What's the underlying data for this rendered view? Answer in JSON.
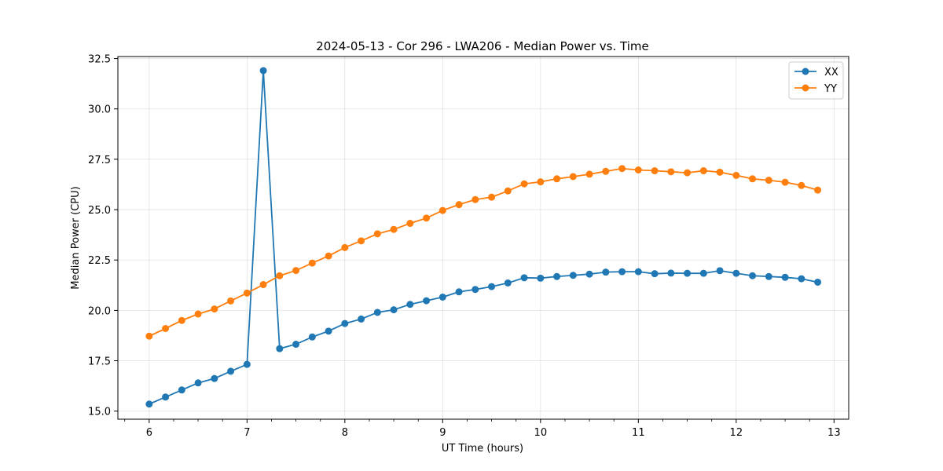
{
  "chart_data": {
    "type": "line",
    "title": "2024-05-13 - Cor 296 - LWA206 - Median Power vs. Time",
    "xlabel": "UT Time (hours)",
    "ylabel": "Median Power (CPU)",
    "xlim": [
      5.68,
      13.15
    ],
    "ylim": [
      14.6,
      32.6
    ],
    "xticks": [
      6,
      7,
      8,
      9,
      10,
      11,
      12,
      13
    ],
    "yticks": [
      15.0,
      17.5,
      20.0,
      22.5,
      25.0,
      27.5,
      30.0,
      32.5
    ],
    "grid": true,
    "legend_position": "top-right",
    "x": [
      6.0,
      6.1667,
      6.3333,
      6.5,
      6.6667,
      6.8333,
      7.0,
      7.1667,
      7.3333,
      7.5,
      7.6667,
      7.8333,
      8.0,
      8.1667,
      8.3333,
      8.5,
      8.6667,
      8.8333,
      9.0,
      9.1667,
      9.3333,
      9.5,
      9.6667,
      9.8333,
      10.0,
      10.1667,
      10.3333,
      10.5,
      10.6667,
      10.8333,
      11.0,
      11.1667,
      11.3333,
      11.5,
      11.6667,
      11.8333,
      12.0,
      12.1667,
      12.3333,
      12.5,
      12.6667,
      12.8333
    ],
    "series": [
      {
        "name": "XX",
        "color": "#1f77b4",
        "values": [
          15.35,
          15.7,
          16.05,
          16.4,
          16.62,
          16.98,
          17.32,
          31.9,
          18.1,
          18.32,
          18.68,
          18.97,
          19.35,
          19.57,
          19.9,
          20.03,
          20.3,
          20.48,
          20.66,
          20.92,
          21.04,
          21.18,
          21.36,
          21.62,
          21.6,
          21.68,
          21.74,
          21.8,
          21.9,
          21.92,
          21.92,
          21.82,
          21.85,
          21.84,
          21.84,
          21.97,
          21.84,
          21.72,
          21.68,
          21.64,
          21.57,
          21.4
        ]
      },
      {
        "name": "YY",
        "color": "#ff7f0e",
        "values": [
          18.72,
          19.1,
          19.5,
          19.82,
          20.07,
          20.47,
          20.86,
          21.28,
          21.72,
          21.98,
          22.35,
          22.7,
          23.12,
          23.45,
          23.8,
          24.02,
          24.32,
          24.58,
          24.96,
          25.25,
          25.5,
          25.62,
          25.93,
          26.28,
          26.38,
          26.53,
          26.64,
          26.76,
          26.9,
          27.04,
          26.97,
          26.93,
          26.88,
          26.83,
          26.93,
          26.86,
          26.7,
          26.53,
          26.46,
          26.36,
          26.2,
          25.97
        ]
      }
    ]
  }
}
